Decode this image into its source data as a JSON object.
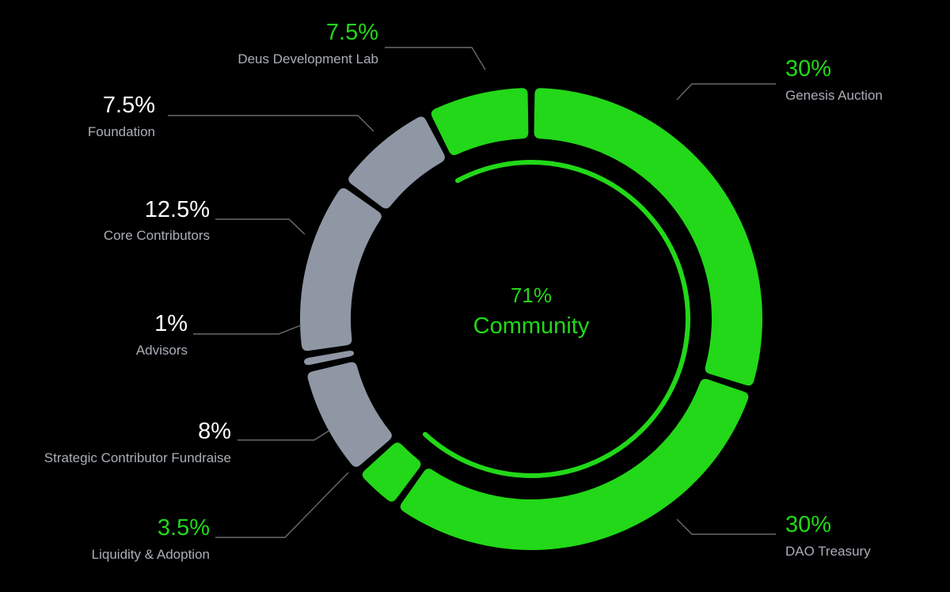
{
  "chart_data": {
    "type": "pie",
    "variant": "donut",
    "title": "",
    "start_label": "Genesis Auction",
    "direction": "clockwise-from-top",
    "slices": [
      {
        "label": "Genesis Auction",
        "value": 30,
        "display": "30%",
        "group": "community",
        "color": "#22d818",
        "label_color": "#22d818"
      },
      {
        "label": "DAO Treasury",
        "value": 30,
        "display": "30%",
        "group": "community",
        "color": "#22d818",
        "label_color": "#22d818"
      },
      {
        "label": "Liquidity & Adoption",
        "value": 3.5,
        "display": "3.5%",
        "group": "community",
        "color": "#22d818",
        "label_color": "#22d818"
      },
      {
        "label": "Strategic Contributor Fundraise",
        "value": 8,
        "display": "8%",
        "group": "other",
        "color": "#8f97a4",
        "label_color": "#ffffff"
      },
      {
        "label": "Advisors",
        "value": 1,
        "display": "1%",
        "group": "other",
        "color": "#8f97a4",
        "label_color": "#ffffff"
      },
      {
        "label": "Core Contributors",
        "value": 12.5,
        "display": "12.5%",
        "group": "other",
        "color": "#8f97a4",
        "label_color": "#ffffff"
      },
      {
        "label": "Foundation",
        "value": 7.5,
        "display": "7.5%",
        "group": "other",
        "color": "#8f97a4",
        "label_color": "#ffffff"
      },
      {
        "label": "Deus Development Lab",
        "value": 7.5,
        "display": "7.5%",
        "group": "community",
        "color": "#22d818",
        "label_color": "#22d818"
      }
    ],
    "center": {
      "value_text": "71%",
      "label": "Community",
      "value": 71,
      "color": "#22d818"
    },
    "colors": {
      "background": "#000000",
      "community": "#22d818",
      "other": "#8f97a4",
      "leader_line": "#6b6b6b",
      "name_text": "#a9aeb6"
    },
    "legend": "none"
  }
}
